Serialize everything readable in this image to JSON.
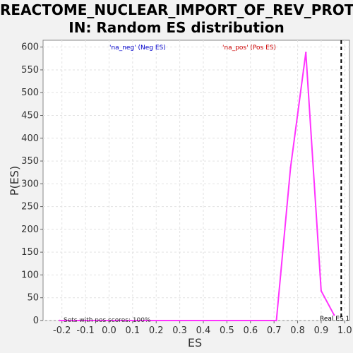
{
  "chart_data": {
    "type": "line",
    "title_line1": "REACTOME_NUCLEAR_IMPORT_OF_REV_PROTE",
    "title_line2": "IN: Random ES distribution",
    "xlabel": "ES",
    "ylabel": "P(ES)",
    "xlim": [
      -0.28,
      1.02
    ],
    "ylim": [
      0,
      615
    ],
    "x_ticks": [
      "-0.2",
      "-0.1",
      "0.0",
      "0.1",
      "0.2",
      "0.3",
      "0.4",
      "0.5",
      "0.6",
      "0.7",
      "0.8",
      "0.9",
      "1.0"
    ],
    "y_ticks": [
      "0",
      "50",
      "100",
      "150",
      "200",
      "250",
      "300",
      "350",
      "400",
      "450",
      "500",
      "550",
      "600"
    ],
    "grid": true,
    "legend_neg": "'na_neg' (Neg ES)",
    "legend_pos": "'na_pos' (Pos ES)",
    "legend_neg_color": "#0000cc",
    "legend_pos_color": "#cc0000",
    "series": [
      {
        "color": "#ff33ff",
        "x": [
          -0.21,
          0.71,
          0.77,
          0.835,
          0.9,
          0.955
        ],
        "y": [
          0,
          0,
          335,
          588,
          65,
          12
        ]
      }
    ],
    "real_es": {
      "x": 0.985,
      "label": "Real ES 1"
    },
    "footnote": "Sets with pos scores: 100%"
  }
}
